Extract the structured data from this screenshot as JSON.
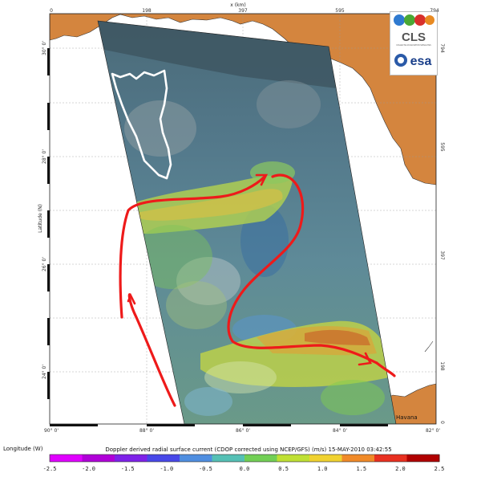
{
  "map": {
    "top_axis": {
      "label": "x (km)",
      "ticks": [
        "0",
        "198",
        "397",
        "595",
        "794"
      ]
    },
    "bottom_axis": {
      "ticks": [
        "90° 0'",
        "88° 0'",
        "86° 0'",
        "84° 0'",
        "82° 0'"
      ]
    },
    "left_axis": {
      "label": "Latitude (N)",
      "ticks": [
        "30° 0'",
        "28° 0'",
        "26° 0'",
        "24° 0'"
      ]
    },
    "right_axis": {
      "ticks": [
        "794",
        "595",
        "397",
        "198",
        "0"
      ]
    },
    "place_label": "Havana",
    "colors": {
      "land": "#d4853e",
      "arrow": "#ee1a1a",
      "spill_outline": "#ffffff"
    }
  },
  "logos": {
    "cls": "CLS",
    "cls_sub": "COLLECTE LOCALISATION SATELLITES",
    "esa": "esa"
  },
  "colorbar": {
    "left_label": "Longitude (W)",
    "title": "Doppler derived radial surface current (CDOP corrected using NCEP/GFS)  (m/s)   15-MAY-2010 03:42:55",
    "ticks": [
      "-2.5",
      "-2.0",
      "-1.5",
      "-1.0",
      "-0.5",
      "0.0",
      "0.5",
      "1.0",
      "1.5",
      "2.0",
      "2.5"
    ],
    "colors": [
      "#e000ff",
      "#b000d8",
      "#7e22e8",
      "#4848e8",
      "#4f8ee0",
      "#55c0b5",
      "#72cf55",
      "#bfe034",
      "#f0d230",
      "#f08a28",
      "#e83020",
      "#b00000"
    ]
  }
}
